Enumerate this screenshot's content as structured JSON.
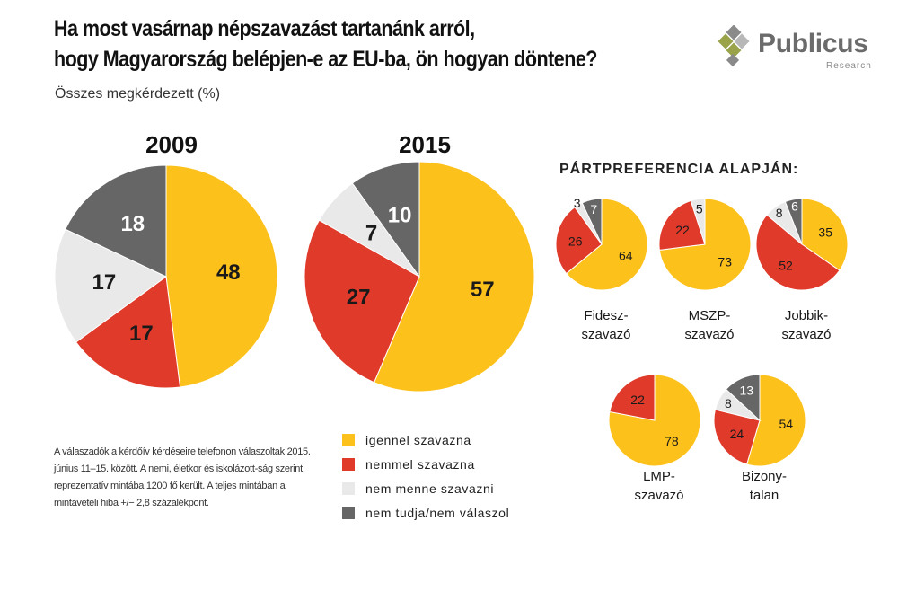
{
  "title_line1": "Ha most vasárnap népszavazást tartanánk arról,",
  "title_line2": "hogy Magyarország belépjen-e az EU-ba, ön hogyan döntene?",
  "subtitle": "Összes megkérdezett (%)",
  "logo": {
    "name": "Publicus",
    "sub": "Research"
  },
  "pref_heading": "PÁRTPREFERENCIA ALAPJÁN:",
  "colors": {
    "yes": "#fdc11b",
    "no": "#e03a2a",
    "wouldnt_vote": "#e9e9e9",
    "dont_know": "#666666"
  },
  "legend": [
    {
      "key": "yes",
      "label": "igennel szavazna"
    },
    {
      "key": "no",
      "label": "nemmel szavazna"
    },
    {
      "key": "wouldnt_vote",
      "label": "nem menne szavazni"
    },
    {
      "key": "dont_know",
      "label": "nem tudja/nem válaszol"
    }
  ],
  "note": "A válaszadók a kérdőív kérdéseire telefonon válaszoltak 2015. június 11–15. között. A nemi, életkor és iskolázott-ság szerint reprezentatív mintába 1200 fő került. A teljes mintában a mintavételi hiba +/− 2,8 százalékpont.",
  "chart_data": [
    {
      "type": "pie",
      "title": "2009",
      "slices": [
        {
          "category": "yes",
          "value": 48
        },
        {
          "category": "no",
          "value": 17
        },
        {
          "category": "wouldnt_vote",
          "value": 17
        },
        {
          "category": "dont_know",
          "value": 18
        }
      ]
    },
    {
      "type": "pie",
      "title": "2015",
      "slices": [
        {
          "category": "yes",
          "value": 57
        },
        {
          "category": "no",
          "value": 27
        },
        {
          "category": "wouldnt_vote",
          "value": 7
        },
        {
          "category": "dont_know",
          "value": 10
        }
      ]
    },
    {
      "type": "pie",
      "label_lines": [
        "Fidesz-",
        "szavazó"
      ],
      "slices": [
        {
          "category": "yes",
          "value": 64
        },
        {
          "category": "no",
          "value": 26
        },
        {
          "category": "wouldnt_vote",
          "value": 3
        },
        {
          "category": "dont_know",
          "value": 7
        }
      ]
    },
    {
      "type": "pie",
      "label_lines": [
        "MSZP-",
        "szavazó"
      ],
      "slices": [
        {
          "category": "yes",
          "value": 73
        },
        {
          "category": "no",
          "value": 22
        },
        {
          "category": "wouldnt_vote",
          "value": 5
        }
      ]
    },
    {
      "type": "pie",
      "label_lines": [
        "Jobbik-",
        "szavazó"
      ],
      "slices": [
        {
          "category": "yes",
          "value": 35
        },
        {
          "category": "no",
          "value": 52
        },
        {
          "category": "wouldnt_vote",
          "value": 8
        },
        {
          "category": "dont_know",
          "value": 6
        }
      ]
    },
    {
      "type": "pie",
      "label_lines": [
        "LMP-",
        "szavazó"
      ],
      "slices": [
        {
          "category": "yes",
          "value": 78
        },
        {
          "category": "no",
          "value": 22
        }
      ]
    },
    {
      "type": "pie",
      "label_lines": [
        "Bizony-",
        "talan"
      ],
      "slices": [
        {
          "category": "yes",
          "value": 54
        },
        {
          "category": "no",
          "value": 24
        },
        {
          "category": "wouldnt_vote",
          "value": 8
        },
        {
          "category": "dont_know",
          "value": 13
        }
      ]
    }
  ]
}
